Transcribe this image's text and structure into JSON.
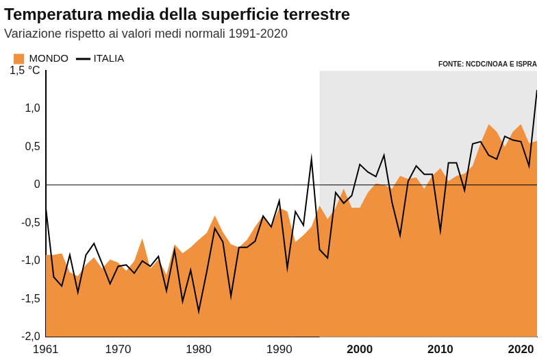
{
  "chart_data": {
    "type": "line",
    "title": "Temperatura media della superficie terrestre",
    "subtitle": "Variazione rispetto ai valori medi normali 1991-2020",
    "source": "FONTE: NCDC/NOAA E ISPRA",
    "x": [
      1961,
      1962,
      1963,
      1964,
      1965,
      1966,
      1967,
      1968,
      1969,
      1970,
      1971,
      1972,
      1973,
      1974,
      1975,
      1976,
      1977,
      1978,
      1979,
      1980,
      1981,
      1982,
      1983,
      1984,
      1985,
      1986,
      1987,
      1988,
      1989,
      1990,
      1991,
      1992,
      1993,
      1994,
      1995,
      1996,
      1997,
      1998,
      1999,
      2000,
      2001,
      2002,
      2003,
      2004,
      2005,
      2006,
      2007,
      2008,
      2009,
      2010,
      2011,
      2012,
      2013,
      2014,
      2015,
      2016,
      2017,
      2018,
      2019,
      2020,
      2021,
      2022
    ],
    "series": [
      {
        "name": "MONDO",
        "type": "area",
        "color": "#f0913f",
        "values": [
          -0.92,
          -0.92,
          -0.9,
          -1.15,
          -1.2,
          -1.05,
          -0.95,
          -1.1,
          -0.98,
          -1.02,
          -1.13,
          -1.0,
          -0.7,
          -1.1,
          -0.98,
          -1.18,
          -0.78,
          -0.9,
          -0.82,
          -0.72,
          -0.63,
          -0.4,
          -0.62,
          -0.78,
          -0.82,
          -0.72,
          -0.55,
          -0.4,
          -0.55,
          -0.3,
          -0.35,
          -0.75,
          -0.66,
          -0.55,
          -0.27,
          -0.45,
          -0.3,
          -0.05,
          -0.3,
          -0.3,
          -0.1,
          0.02,
          0.0,
          -0.05,
          0.12,
          0.08,
          0.1,
          -0.05,
          0.12,
          0.22,
          0.05,
          0.12,
          0.15,
          0.25,
          0.55,
          0.8,
          0.7,
          0.5,
          0.7,
          0.8,
          0.55,
          0.58
        ]
      },
      {
        "name": "ITALIA",
        "type": "line",
        "color": "#000000",
        "values": [
          -0.28,
          -1.21,
          -1.33,
          -0.92,
          -1.41,
          -0.92,
          -0.77,
          -1.03,
          -1.3,
          -1.07,
          -1.05,
          -1.16,
          -1.0,
          -1.07,
          -0.94,
          -1.39,
          -0.86,
          -1.53,
          -1.12,
          -1.66,
          -1.14,
          -0.57,
          -0.75,
          -1.46,
          -0.82,
          -0.82,
          -0.74,
          -0.41,
          -0.55,
          -0.21,
          -1.09,
          -0.35,
          -0.53,
          0.34,
          -0.85,
          -0.96,
          -0.1,
          -0.24,
          -0.14,
          0.27,
          0.17,
          0.11,
          0.39,
          -0.23,
          -0.66,
          0.05,
          0.25,
          0.14,
          0.14,
          -0.6,
          0.29,
          0.29,
          -0.07,
          0.54,
          0.57,
          0.39,
          0.34,
          0.64,
          0.59,
          0.57,
          0.25,
          1.25
        ]
      }
    ],
    "xlim": [
      1961,
      2022
    ],
    "xticks": [
      1961,
      1970,
      1980,
      1990,
      2000,
      2010,
      2020
    ],
    "ylim": [
      -2,
      1.5
    ],
    "yticks": [
      {
        "value": 1.5,
        "label": "1,5 °C"
      },
      {
        "value": 1,
        "label": "1,0"
      },
      {
        "value": 0.5,
        "label": "0,5"
      },
      0,
      {
        "value": -0.5,
        "label": "-0,5"
      },
      {
        "value": -1,
        "label": "-1,0"
      },
      {
        "value": -1.5,
        "label": "-1,5"
      },
      {
        "value": -2,
        "label": "-2,0"
      }
    ],
    "highlight_xlim": [
      1995,
      2022
    ],
    "grid": false,
    "legend": "top-left"
  }
}
